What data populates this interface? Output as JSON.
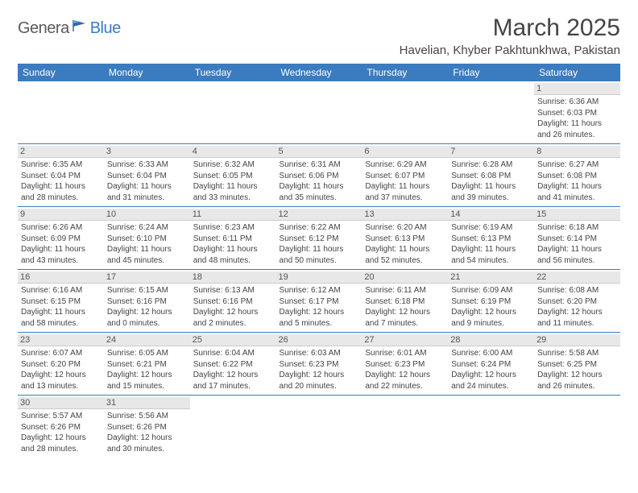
{
  "logo": {
    "part1": "Genera",
    "part2": "Blue"
  },
  "title": "March 2025",
  "location": "Havelian, Khyber Pakhtunkhwa, Pakistan",
  "colors": {
    "header_bg": "#3b7bbf",
    "header_text": "#ffffff",
    "daynum_bg": "#e8e8e8",
    "text": "#444444",
    "border": "#3b7bbf"
  },
  "typography": {
    "title_fontsize": 30,
    "location_fontsize": 15,
    "dayhead_fontsize": 12,
    "cell_fontsize": 10
  },
  "layout": {
    "columns": 7,
    "rows": 6
  },
  "dayHeaders": [
    "Sunday",
    "Monday",
    "Tuesday",
    "Wednesday",
    "Thursday",
    "Friday",
    "Saturday"
  ],
  "weeks": [
    [
      null,
      null,
      null,
      null,
      null,
      null,
      {
        "n": "1",
        "sr": "Sunrise: 6:36 AM",
        "ss": "Sunset: 6:03 PM",
        "d1": "Daylight: 11 hours",
        "d2": "and 26 minutes."
      }
    ],
    [
      {
        "n": "2",
        "sr": "Sunrise: 6:35 AM",
        "ss": "Sunset: 6:04 PM",
        "d1": "Daylight: 11 hours",
        "d2": "and 28 minutes."
      },
      {
        "n": "3",
        "sr": "Sunrise: 6:33 AM",
        "ss": "Sunset: 6:04 PM",
        "d1": "Daylight: 11 hours",
        "d2": "and 31 minutes."
      },
      {
        "n": "4",
        "sr": "Sunrise: 6:32 AM",
        "ss": "Sunset: 6:05 PM",
        "d1": "Daylight: 11 hours",
        "d2": "and 33 minutes."
      },
      {
        "n": "5",
        "sr": "Sunrise: 6:31 AM",
        "ss": "Sunset: 6:06 PM",
        "d1": "Daylight: 11 hours",
        "d2": "and 35 minutes."
      },
      {
        "n": "6",
        "sr": "Sunrise: 6:29 AM",
        "ss": "Sunset: 6:07 PM",
        "d1": "Daylight: 11 hours",
        "d2": "and 37 minutes."
      },
      {
        "n": "7",
        "sr": "Sunrise: 6:28 AM",
        "ss": "Sunset: 6:08 PM",
        "d1": "Daylight: 11 hours",
        "d2": "and 39 minutes."
      },
      {
        "n": "8",
        "sr": "Sunrise: 6:27 AM",
        "ss": "Sunset: 6:08 PM",
        "d1": "Daylight: 11 hours",
        "d2": "and 41 minutes."
      }
    ],
    [
      {
        "n": "9",
        "sr": "Sunrise: 6:26 AM",
        "ss": "Sunset: 6:09 PM",
        "d1": "Daylight: 11 hours",
        "d2": "and 43 minutes."
      },
      {
        "n": "10",
        "sr": "Sunrise: 6:24 AM",
        "ss": "Sunset: 6:10 PM",
        "d1": "Daylight: 11 hours",
        "d2": "and 45 minutes."
      },
      {
        "n": "11",
        "sr": "Sunrise: 6:23 AM",
        "ss": "Sunset: 6:11 PM",
        "d1": "Daylight: 11 hours",
        "d2": "and 48 minutes."
      },
      {
        "n": "12",
        "sr": "Sunrise: 6:22 AM",
        "ss": "Sunset: 6:12 PM",
        "d1": "Daylight: 11 hours",
        "d2": "and 50 minutes."
      },
      {
        "n": "13",
        "sr": "Sunrise: 6:20 AM",
        "ss": "Sunset: 6:13 PM",
        "d1": "Daylight: 11 hours",
        "d2": "and 52 minutes."
      },
      {
        "n": "14",
        "sr": "Sunrise: 6:19 AM",
        "ss": "Sunset: 6:13 PM",
        "d1": "Daylight: 11 hours",
        "d2": "and 54 minutes."
      },
      {
        "n": "15",
        "sr": "Sunrise: 6:18 AM",
        "ss": "Sunset: 6:14 PM",
        "d1": "Daylight: 11 hours",
        "d2": "and 56 minutes."
      }
    ],
    [
      {
        "n": "16",
        "sr": "Sunrise: 6:16 AM",
        "ss": "Sunset: 6:15 PM",
        "d1": "Daylight: 11 hours",
        "d2": "and 58 minutes."
      },
      {
        "n": "17",
        "sr": "Sunrise: 6:15 AM",
        "ss": "Sunset: 6:16 PM",
        "d1": "Daylight: 12 hours",
        "d2": "and 0 minutes."
      },
      {
        "n": "18",
        "sr": "Sunrise: 6:13 AM",
        "ss": "Sunset: 6:16 PM",
        "d1": "Daylight: 12 hours",
        "d2": "and 2 minutes."
      },
      {
        "n": "19",
        "sr": "Sunrise: 6:12 AM",
        "ss": "Sunset: 6:17 PM",
        "d1": "Daylight: 12 hours",
        "d2": "and 5 minutes."
      },
      {
        "n": "20",
        "sr": "Sunrise: 6:11 AM",
        "ss": "Sunset: 6:18 PM",
        "d1": "Daylight: 12 hours",
        "d2": "and 7 minutes."
      },
      {
        "n": "21",
        "sr": "Sunrise: 6:09 AM",
        "ss": "Sunset: 6:19 PM",
        "d1": "Daylight: 12 hours",
        "d2": "and 9 minutes."
      },
      {
        "n": "22",
        "sr": "Sunrise: 6:08 AM",
        "ss": "Sunset: 6:20 PM",
        "d1": "Daylight: 12 hours",
        "d2": "and 11 minutes."
      }
    ],
    [
      {
        "n": "23",
        "sr": "Sunrise: 6:07 AM",
        "ss": "Sunset: 6:20 PM",
        "d1": "Daylight: 12 hours",
        "d2": "and 13 minutes."
      },
      {
        "n": "24",
        "sr": "Sunrise: 6:05 AM",
        "ss": "Sunset: 6:21 PM",
        "d1": "Daylight: 12 hours",
        "d2": "and 15 minutes."
      },
      {
        "n": "25",
        "sr": "Sunrise: 6:04 AM",
        "ss": "Sunset: 6:22 PM",
        "d1": "Daylight: 12 hours",
        "d2": "and 17 minutes."
      },
      {
        "n": "26",
        "sr": "Sunrise: 6:03 AM",
        "ss": "Sunset: 6:23 PM",
        "d1": "Daylight: 12 hours",
        "d2": "and 20 minutes."
      },
      {
        "n": "27",
        "sr": "Sunrise: 6:01 AM",
        "ss": "Sunset: 6:23 PM",
        "d1": "Daylight: 12 hours",
        "d2": "and 22 minutes."
      },
      {
        "n": "28",
        "sr": "Sunrise: 6:00 AM",
        "ss": "Sunset: 6:24 PM",
        "d1": "Daylight: 12 hours",
        "d2": "and 24 minutes."
      },
      {
        "n": "29",
        "sr": "Sunrise: 5:58 AM",
        "ss": "Sunset: 6:25 PM",
        "d1": "Daylight: 12 hours",
        "d2": "and 26 minutes."
      }
    ],
    [
      {
        "n": "30",
        "sr": "Sunrise: 5:57 AM",
        "ss": "Sunset: 6:26 PM",
        "d1": "Daylight: 12 hours",
        "d2": "and 28 minutes."
      },
      {
        "n": "31",
        "sr": "Sunrise: 5:56 AM",
        "ss": "Sunset: 6:26 PM",
        "d1": "Daylight: 12 hours",
        "d2": "and 30 minutes."
      },
      null,
      null,
      null,
      null,
      null
    ]
  ]
}
